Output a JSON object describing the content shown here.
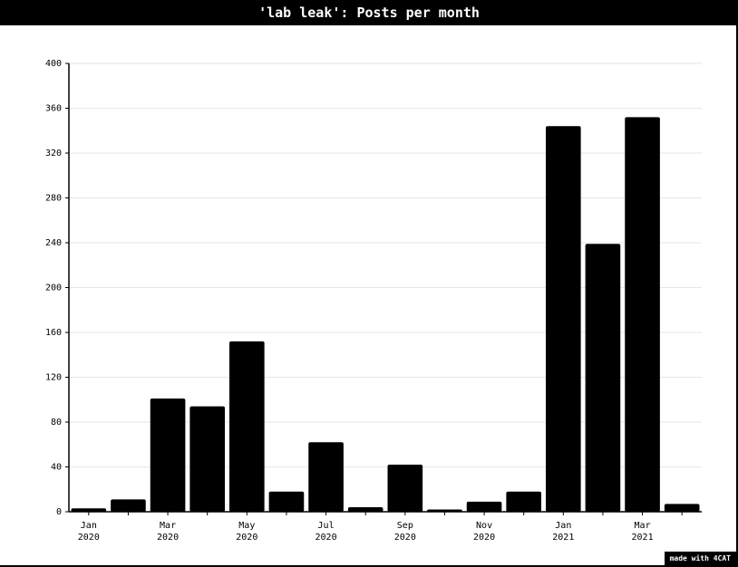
{
  "header": {
    "title": "'lab leak': Posts per month"
  },
  "footer": {
    "credit": "made with 4CAT"
  },
  "colors": {
    "bar": "#000000",
    "grid": "#e6e6e6",
    "title_bg": "#000000",
    "title_fg": "#ffffff"
  },
  "chart_data": {
    "type": "bar",
    "title": "'lab leak': Posts per month",
    "xlabel": "",
    "ylabel": "",
    "ylim": [
      0,
      400
    ],
    "yticks": [
      0,
      40,
      80,
      120,
      160,
      200,
      240,
      280,
      320,
      360,
      400
    ],
    "grid": true,
    "categories": [
      "Jan 2020",
      "Feb 2020",
      "Mar 2020",
      "Apr 2020",
      "May 2020",
      "Jun 2020",
      "Jul 2020",
      "Aug 2020",
      "Sep 2020",
      "Oct 2020",
      "Nov 2020",
      "Dec 2020",
      "Jan 2021",
      "Feb 2021",
      "Mar 2021",
      "Apr 2021"
    ],
    "values": [
      3,
      11,
      101,
      94,
      152,
      18,
      62,
      4,
      42,
      2,
      9,
      18,
      344,
      239,
      352,
      7
    ],
    "xtick_labels": [
      {
        "index": 0,
        "month": "Jan",
        "year": "2020"
      },
      {
        "index": 2,
        "month": "Mar",
        "year": "2020"
      },
      {
        "index": 4,
        "month": "May",
        "year": "2020"
      },
      {
        "index": 6,
        "month": "Jul",
        "year": "2020"
      },
      {
        "index": 8,
        "month": "Sep",
        "year": "2020"
      },
      {
        "index": 10,
        "month": "Nov",
        "year": "2020"
      },
      {
        "index": 12,
        "month": "Jan",
        "year": "2021"
      },
      {
        "index": 14,
        "month": "Mar",
        "year": "2021"
      }
    ]
  }
}
